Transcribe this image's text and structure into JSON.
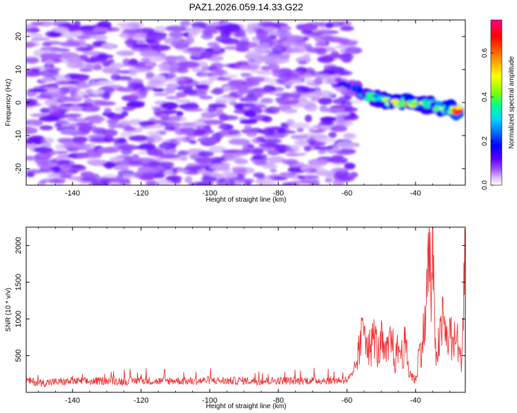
{
  "title": "PAZ1.2026.059.14.33.G22",
  "chart_data": [
    {
      "type": "heatmap",
      "title": "PAZ1.2026.059.14.33.G22",
      "xlabel": "Height of straight line (km)",
      "ylabel": "Frequency (Hz)",
      "xlim": [
        -153.5,
        -25.5
      ],
      "ylim": [
        -25,
        25
      ],
      "xticks": [
        -140,
        -120,
        -100,
        -80,
        -60,
        -40
      ],
      "yticks": [
        -20,
        -10,
        0,
        10,
        20
      ],
      "colorbar": {
        "label": "Normalized spectral amplitude",
        "range": [
          0.0,
          0.75
        ],
        "ticks": [
          0.0,
          0.2,
          0.4,
          0.6
        ],
        "colors": [
          "#ffffff",
          "#e0c8ff",
          "#9a4cff",
          "#5a00ff",
          "#0000ff",
          "#0070ff",
          "#00d8ff",
          "#00ff90",
          "#80ff00",
          "#ffff00",
          "#ff8000",
          "#ff0000",
          "#ff0080"
        ]
      },
      "noise_region": {
        "x_from": -153.5,
        "x_to": -58,
        "y_from": -25,
        "y_to": 24,
        "amplitude": [
          0.03,
          0.12
        ]
      },
      "signal_track": [
        {
          "x": -63,
          "freq": 6.0,
          "amplitude": 0.12
        },
        {
          "x": -58,
          "freq": 4.5,
          "amplitude": 0.2
        },
        {
          "x": -54,
          "freq": 2.0,
          "amplitude": 0.35
        },
        {
          "x": -50,
          "freq": 1.0,
          "amplitude": 0.42
        },
        {
          "x": -46,
          "freq": 0.0,
          "amplitude": 0.48
        },
        {
          "x": -42,
          "freq": 0.0,
          "amplitude": 0.55
        },
        {
          "x": -38,
          "freq": -0.5,
          "amplitude": 0.45
        },
        {
          "x": -34,
          "freq": -1.0,
          "amplitude": 0.4
        },
        {
          "x": -30,
          "freq": -2.0,
          "amplitude": 0.5
        },
        {
          "x": -27,
          "freq": -2.5,
          "amplitude": 0.7
        }
      ]
    },
    {
      "type": "line",
      "xlabel": "Height of straight line (km)",
      "ylabel": "SNR (10 * v/v)",
      "xlim": [
        -153.5,
        -25.5
      ],
      "ylim": [
        0,
        2250
      ],
      "xticks": [
        -140,
        -120,
        -100,
        -80,
        -60,
        -40
      ],
      "yticks": [
        500,
        1000,
        1500,
        2000
      ],
      "series": [
        {
          "name": "SNR",
          "color": "#ee3333",
          "x": [
            -153.5,
            -150,
            -145,
            -140,
            -135,
            -130,
            -125,
            -120,
            -115,
            -110,
            -105,
            -100,
            -95,
            -90,
            -85,
            -80,
            -75,
            -70,
            -65,
            -60,
            -58,
            -56,
            -55,
            -54,
            -53,
            -52,
            -51,
            -50,
            -49,
            -48,
            -47,
            -46,
            -45,
            -44,
            -43,
            -42,
            -41,
            -40,
            -39,
            -38,
            -37,
            -36,
            -35.5,
            -35,
            -34.5,
            -34,
            -33,
            -32,
            -31,
            -30,
            -29,
            -28,
            -27,
            -26.5,
            -26,
            -25.5
          ],
          "y": [
            160,
            130,
            140,
            150,
            145,
            160,
            150,
            165,
            150,
            160,
            150,
            165,
            155,
            160,
            150,
            160,
            155,
            165,
            160,
            170,
            250,
            650,
            1000,
            700,
            580,
            820,
            520,
            700,
            480,
            560,
            760,
            420,
            620,
            520,
            660,
            300,
            220,
            160,
            520,
            680,
            1050,
            2020,
            1250,
            2030,
            820,
            560,
            680,
            1000,
            720,
            820,
            620,
            780,
            420,
            520,
            1300,
            2200
          ]
        }
      ]
    }
  ]
}
